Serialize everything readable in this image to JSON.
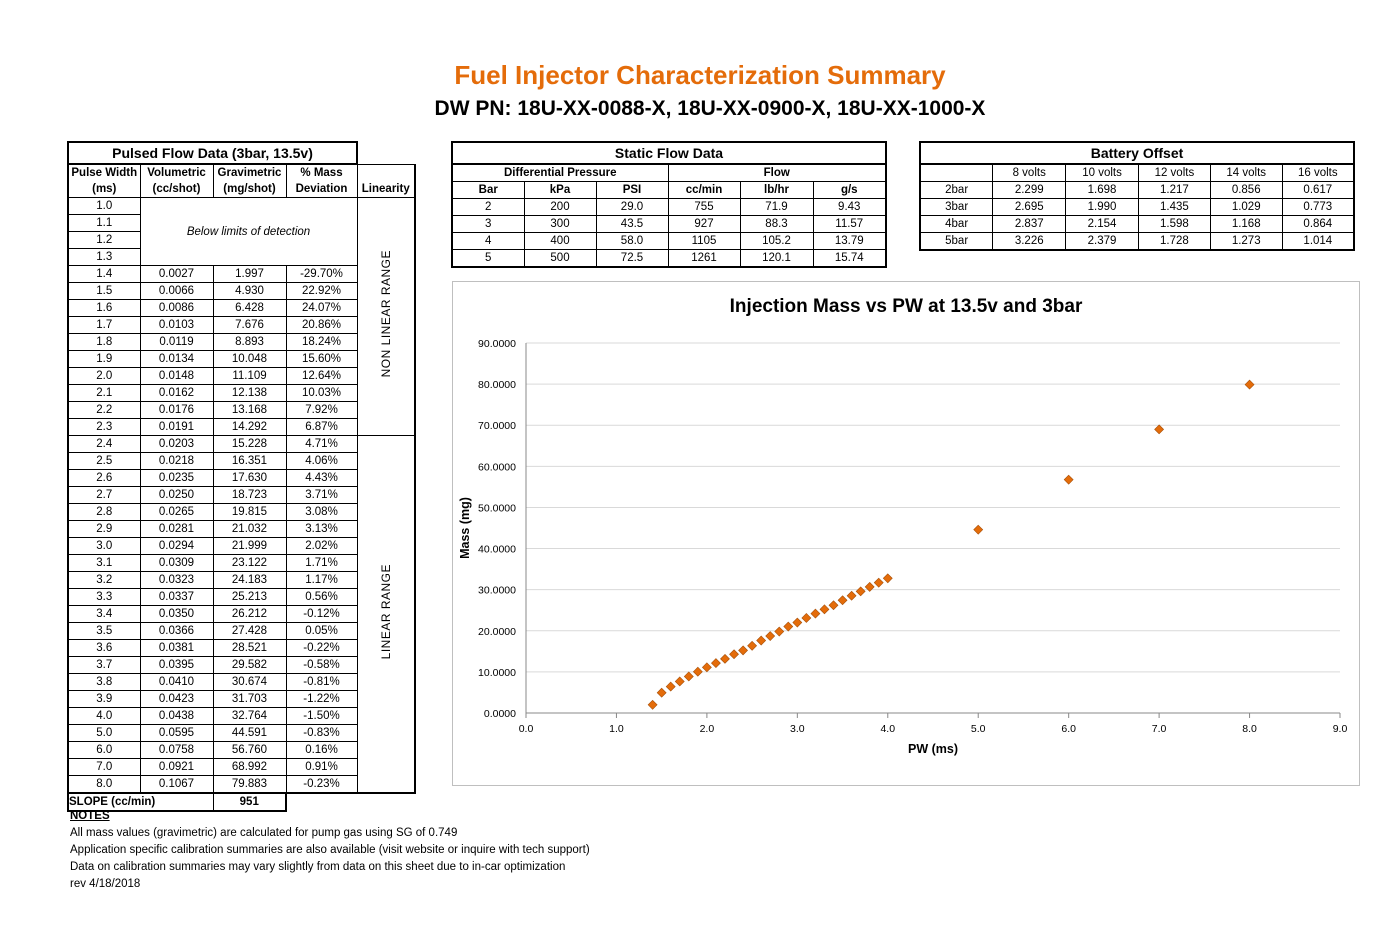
{
  "header": {
    "title": "Fuel Injector Characterization Summary",
    "subtitle": "DW PN: 18U-XX-0088-X, 18U-XX-0900-X, 18U-XX-1000-X"
  },
  "pulsed": {
    "caption": "Pulsed Flow Data (3bar, 13.5v)",
    "headers": [
      [
        "Pulse Width",
        "(ms)"
      ],
      [
        "Volumetric",
        "(cc/shot)"
      ],
      [
        "Gravimetric",
        "(mg/shot)"
      ],
      [
        "% Mass",
        "Deviation"
      ],
      [
        "",
        "Linearity"
      ]
    ],
    "below_limits": "Below limits of detection",
    "undetected_pw": [
      "1.0",
      "1.1",
      "1.2",
      "1.3"
    ],
    "rows": [
      [
        "1.4",
        "0.0027",
        "1.997",
        "-29.70%"
      ],
      [
        "1.5",
        "0.0066",
        "4.930",
        "22.92%"
      ],
      [
        "1.6",
        "0.0086",
        "6.428",
        "24.07%"
      ],
      [
        "1.7",
        "0.0103",
        "7.676",
        "20.86%"
      ],
      [
        "1.8",
        "0.0119",
        "8.893",
        "18.24%"
      ],
      [
        "1.9",
        "0.0134",
        "10.048",
        "15.60%"
      ],
      [
        "2.0",
        "0.0148",
        "11.109",
        "12.64%"
      ],
      [
        "2.1",
        "0.0162",
        "12.138",
        "10.03%"
      ],
      [
        "2.2",
        "0.0176",
        "13.168",
        "7.92%"
      ],
      [
        "2.3",
        "0.0191",
        "14.292",
        "6.87%"
      ],
      [
        "2.4",
        "0.0203",
        "15.228",
        "4.71%"
      ],
      [
        "2.5",
        "0.0218",
        "16.351",
        "4.06%"
      ],
      [
        "2.6",
        "0.0235",
        "17.630",
        "4.43%"
      ],
      [
        "2.7",
        "0.0250",
        "18.723",
        "3.71%"
      ],
      [
        "2.8",
        "0.0265",
        "19.815",
        "3.08%"
      ],
      [
        "2.9",
        "0.0281",
        "21.032",
        "3.13%"
      ],
      [
        "3.0",
        "0.0294",
        "21.999",
        "2.02%"
      ],
      [
        "3.1",
        "0.0309",
        "23.122",
        "1.71%"
      ],
      [
        "3.2",
        "0.0323",
        "24.183",
        "1.17%"
      ],
      [
        "3.3",
        "0.0337",
        "25.213",
        "0.56%"
      ],
      [
        "3.4",
        "0.0350",
        "26.212",
        "-0.12%"
      ],
      [
        "3.5",
        "0.0366",
        "27.428",
        "0.05%"
      ],
      [
        "3.6",
        "0.0381",
        "28.521",
        "-0.22%"
      ],
      [
        "3.7",
        "0.0395",
        "29.582",
        "-0.58%"
      ],
      [
        "3.8",
        "0.0410",
        "30.674",
        "-0.81%"
      ],
      [
        "3.9",
        "0.0423",
        "31.703",
        "-1.22%"
      ],
      [
        "4.0",
        "0.0438",
        "32.764",
        "-1.50%"
      ],
      [
        "5.0",
        "0.0595",
        "44.591",
        "-0.83%"
      ],
      [
        "6.0",
        "0.0758",
        "56.760",
        "0.16%"
      ],
      [
        "7.0",
        "0.0921",
        "68.992",
        "0.91%"
      ],
      [
        "8.0",
        "0.1067",
        "79.883",
        "-0.23%"
      ]
    ],
    "non_linear_label": "NON LINEAR RANGE",
    "linear_label": "LINEAR RANGE",
    "slope_label": "SLOPE (cc/min)",
    "slope_value": "951"
  },
  "static": {
    "caption": "Static Flow Data",
    "group_headers": [
      "Differential Pressure",
      "Flow"
    ],
    "headers": [
      "Bar",
      "kPa",
      "PSI",
      "cc/min",
      "lb/hr",
      "g/s"
    ],
    "rows": [
      [
        "2",
        "200",
        "29.0",
        "755",
        "71.9",
        "9.43"
      ],
      [
        "3",
        "300",
        "43.5",
        "927",
        "88.3",
        "11.57"
      ],
      [
        "4",
        "400",
        "58.0",
        "1105",
        "105.2",
        "13.79"
      ],
      [
        "5",
        "500",
        "72.5",
        "1261",
        "120.1",
        "15.74"
      ]
    ]
  },
  "battery": {
    "caption": "Battery Offset",
    "headers": [
      "",
      "8 volts",
      "10 volts",
      "12 volts",
      "14 volts",
      "16 volts"
    ],
    "rows": [
      [
        "2bar",
        "2.299",
        "1.698",
        "1.217",
        "0.856",
        "0.617"
      ],
      [
        "3bar",
        "2.695",
        "1.990",
        "1.435",
        "1.029",
        "0.773"
      ],
      [
        "4bar",
        "2.837",
        "2.154",
        "1.598",
        "1.168",
        "0.864"
      ],
      [
        "5bar",
        "3.226",
        "2.379",
        "1.728",
        "1.273",
        "1.014"
      ]
    ]
  },
  "chart_data": {
    "type": "scatter",
    "title": "Injection Mass vs PW at 13.5v and 3bar",
    "xlabel": "PW (ms)",
    "ylabel": "Mass (mg)",
    "xlim": [
      0,
      9
    ],
    "ylim": [
      0,
      90
    ],
    "xticks": [
      "0.0",
      "1.0",
      "2.0",
      "3.0",
      "4.0",
      "5.0",
      "6.0",
      "7.0",
      "8.0",
      "9.0"
    ],
    "yticks": [
      "0.0000",
      "10.0000",
      "20.0000",
      "30.0000",
      "40.0000",
      "50.0000",
      "60.0000",
      "70.0000",
      "80.0000",
      "90.0000"
    ],
    "grid": "horizontal",
    "marker_color": "#e46c0a",
    "x": [
      1.4,
      1.5,
      1.6,
      1.7,
      1.8,
      1.9,
      2.0,
      2.1,
      2.2,
      2.3,
      2.4,
      2.5,
      2.6,
      2.7,
      2.8,
      2.9,
      3.0,
      3.1,
      3.2,
      3.3,
      3.4,
      3.5,
      3.6,
      3.7,
      3.8,
      3.9,
      4.0,
      5.0,
      6.0,
      7.0,
      8.0
    ],
    "y": [
      1.997,
      4.93,
      6.428,
      7.676,
      8.893,
      10.048,
      11.109,
      12.138,
      13.168,
      14.292,
      15.228,
      16.351,
      17.63,
      18.723,
      19.815,
      21.032,
      21.999,
      23.122,
      24.183,
      25.213,
      26.212,
      27.428,
      28.521,
      29.582,
      30.674,
      31.703,
      32.764,
      44.591,
      56.76,
      68.992,
      79.883
    ]
  },
  "notes": {
    "heading": "NOTES",
    "lines": [
      "All mass values (gravimetric) are calculated for pump gas using SG of 0.749",
      "Application specific calibration summaries are also available (visit website or inquire with tech support)",
      "Data on calibration summaries may vary slightly from data on this sheet due to in-car optimization",
      "rev 4/18/2018"
    ]
  }
}
